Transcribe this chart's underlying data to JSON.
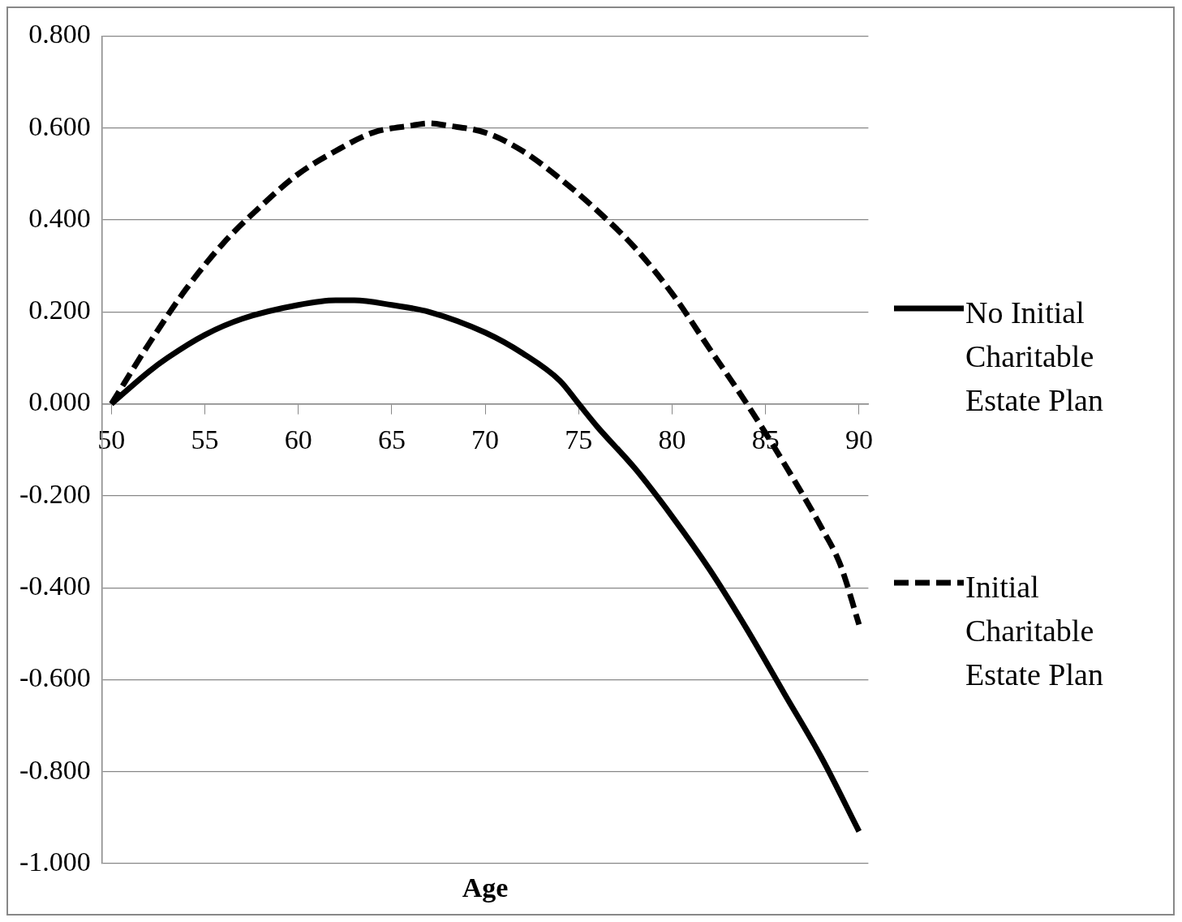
{
  "chart_data": {
    "type": "line",
    "xlabel": "Age",
    "x": [
      50,
      52,
      53,
      55,
      57,
      60,
      62,
      63,
      65,
      67,
      70,
      72,
      74,
      75,
      76,
      78,
      80,
      82,
      84,
      86,
      88,
      90
    ],
    "series": [
      {
        "name": "No Initial Charitable Estate Plan",
        "color": "#000000",
        "line_style": "solid",
        "values": [
          0,
          0.07,
          0.1,
          0.15,
          0.185,
          0.215,
          0.225,
          0.225,
          0.215,
          0.2,
          0.155,
          0.11,
          0.05,
          0.0,
          -0.05,
          -0.14,
          -0.245,
          -0.36,
          -0.49,
          -0.63,
          -0.77,
          -0.93
        ]
      },
      {
        "name": "Initial Charitable Estate Plan",
        "color": "#000000",
        "line_style": "dashed",
        "x": [
          50,
          52,
          54,
          56,
          58,
          60,
          62,
          64,
          66,
          67,
          68,
          70,
          72,
          74,
          76,
          78,
          80,
          82,
          84,
          86,
          88,
          89,
          90
        ],
        "values": [
          0,
          0.13,
          0.25,
          0.35,
          0.43,
          0.5,
          0.55,
          0.59,
          0.605,
          0.61,
          0.605,
          0.59,
          0.55,
          0.49,
          0.42,
          0.34,
          0.24,
          0.12,
          0.0,
          -0.13,
          -0.27,
          -0.35,
          -0.48
        ]
      }
    ],
    "xlim": [
      49.5,
      90.5
    ],
    "xticks": [
      50,
      55,
      60,
      65,
      70,
      75,
      80,
      85,
      90
    ],
    "ylim": [
      -1,
      0.8
    ],
    "yticks": [
      {
        "value": -1,
        "label": "-1.000"
      },
      {
        "value": -0.8,
        "label": "-0.800"
      },
      {
        "value": -0.6,
        "label": "-0.600"
      },
      {
        "value": -0.4,
        "label": "-0.400"
      },
      {
        "value": -0.2,
        "label": "-0.200"
      },
      {
        "value": 0,
        "label": "0.000"
      },
      {
        "value": 0.2,
        "label": "0.200"
      },
      {
        "value": 0.4,
        "label": "0.400"
      },
      {
        "value": 0.6,
        "label": "0.600"
      },
      {
        "value": 0.8,
        "label": "0.800"
      }
    ],
    "grid": "y",
    "legend": "right",
    "marker": "none"
  }
}
